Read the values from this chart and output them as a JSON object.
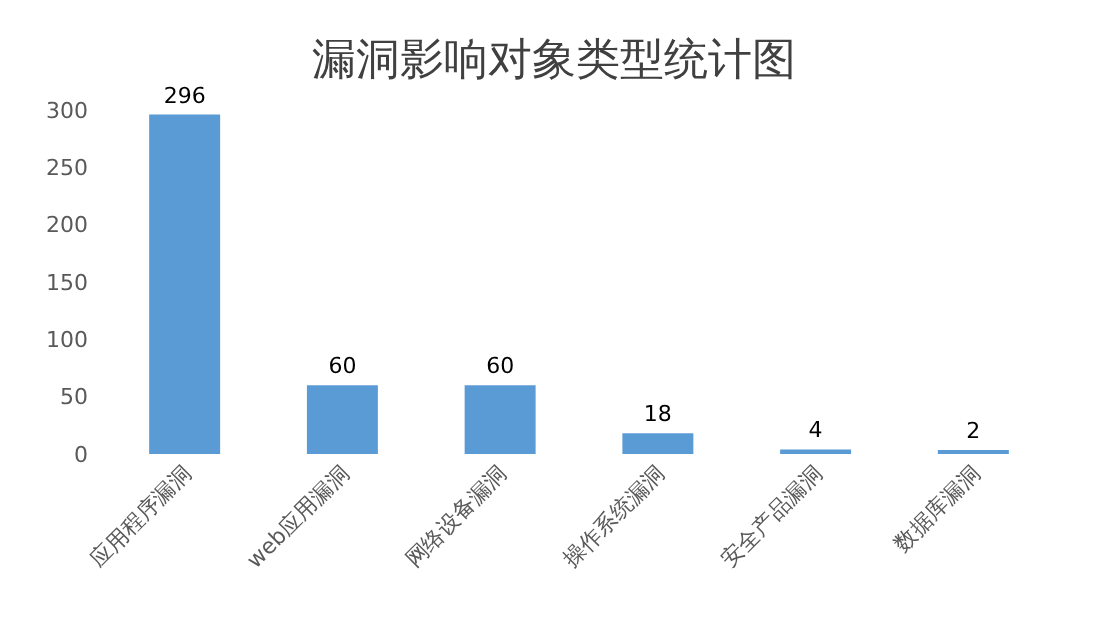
{
  "chart_data": {
    "type": "bar",
    "title": "漏洞影响对象类型统计图",
    "categories": [
      "应用程序漏洞",
      "web应用漏洞",
      "网络设备漏洞",
      "操作系统漏洞",
      "安全产品漏洞",
      "数据库漏洞"
    ],
    "values": [
      296,
      60,
      60,
      18,
      4,
      2
    ],
    "color": "#5b9bd5",
    "ylim": [
      0,
      300
    ],
    "yticks": [
      0,
      50,
      100,
      150,
      200,
      250,
      300
    ],
    "data_labels": true
  }
}
